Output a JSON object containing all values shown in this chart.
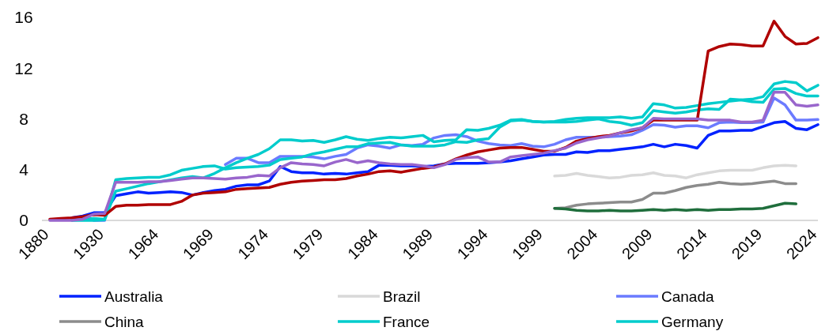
{
  "chart_data": {
    "type": "line",
    "categories": [
      "1880",
      null,
      null,
      null,
      null,
      "1930",
      null,
      null,
      null,
      null,
      "1964",
      null,
      null,
      null,
      null,
      "1969",
      null,
      null,
      null,
      null,
      "1974",
      null,
      null,
      null,
      null,
      "1979",
      null,
      null,
      null,
      null,
      "1984",
      null,
      null,
      null,
      null,
      "1989",
      null,
      null,
      null,
      null,
      "1994",
      null,
      null,
      null,
      null,
      "1999",
      null,
      null,
      null,
      null,
      "2004",
      null,
      null,
      null,
      null,
      "2009",
      null,
      null,
      null,
      null,
      "2014",
      null,
      null,
      null,
      null,
      "2019",
      null,
      null,
      null,
      null,
      "2024"
    ],
    "ylim": [
      0,
      16
    ],
    "yticks": [
      0,
      4,
      8,
      12,
      16
    ],
    "grid": false,
    "legend": "bottom",
    "line_style": "solid",
    "marker": "none",
    "series": [
      {
        "name": "Australia",
        "color": "#0022ff",
        "values": [
          null,
          null,
          0.2,
          0.35,
          0.6,
          0.6,
          1.95,
          2.1,
          2.25,
          2.15,
          2.2,
          2.25,
          2.2,
          2.0,
          2.2,
          2.35,
          2.45,
          2.7,
          2.8,
          2.8,
          3.1,
          4.25,
          3.85,
          3.75,
          3.75,
          3.65,
          3.7,
          3.65,
          3.75,
          3.85,
          4.35,
          4.35,
          4.3,
          4.3,
          4.25,
          4.3,
          4.45,
          4.5,
          4.5,
          4.5,
          4.55,
          4.6,
          4.7,
          4.85,
          5.0,
          5.15,
          5.2,
          5.2,
          5.4,
          5.35,
          5.5,
          5.5,
          5.6,
          5.7,
          5.8,
          6.0,
          5.8,
          6.0,
          5.9,
          5.7,
          6.7,
          7.05,
          7.05,
          7.1,
          7.1,
          7.4,
          7.7,
          7.8,
          7.25,
          7.15,
          7.55
        ]
      },
      {
        "name": "Brazil",
        "color": "#d9d9d9",
        "values": [
          null,
          null,
          null,
          null,
          null,
          null,
          null,
          null,
          null,
          null,
          null,
          null,
          null,
          null,
          null,
          null,
          null,
          null,
          null,
          null,
          null,
          null,
          null,
          null,
          null,
          null,
          null,
          null,
          null,
          null,
          null,
          null,
          null,
          null,
          null,
          null,
          null,
          null,
          null,
          null,
          null,
          null,
          null,
          null,
          null,
          null,
          3.5,
          3.55,
          3.7,
          3.55,
          3.45,
          3.35,
          3.4,
          3.55,
          3.6,
          3.75,
          3.55,
          3.5,
          3.35,
          3.6,
          3.75,
          3.9,
          3.95,
          3.95,
          3.95,
          4.15,
          4.3,
          4.35,
          4.3,
          null,
          null
        ]
      },
      {
        "name": "Canada",
        "color": "#6b7bff",
        "values": [
          null,
          null,
          null,
          null,
          0,
          0,
          null,
          null,
          null,
          null,
          null,
          null,
          null,
          null,
          null,
          null,
          4.4,
          4.9,
          4.9,
          4.55,
          4.55,
          5.05,
          5.05,
          5.05,
          5.0,
          4.85,
          5.05,
          5.2,
          5.7,
          5.95,
          5.85,
          5.7,
          5.95,
          5.9,
          6.0,
          6.5,
          6.7,
          6.75,
          6.6,
          6.25,
          6.05,
          5.95,
          5.9,
          6.05,
          5.85,
          5.8,
          6.0,
          6.35,
          6.55,
          6.55,
          6.55,
          6.6,
          6.65,
          6.75,
          7.1,
          7.55,
          7.5,
          7.35,
          7.45,
          7.45,
          7.3,
          7.7,
          7.75,
          7.7,
          7.7,
          7.75,
          9.65,
          9.1,
          7.9,
          7.9,
          7.95
        ]
      },
      {
        "name": "China",
        "color": "#8c8c8c",
        "values": [
          null,
          null,
          null,
          null,
          null,
          null,
          null,
          null,
          null,
          null,
          null,
          null,
          null,
          null,
          null,
          null,
          null,
          null,
          null,
          null,
          null,
          null,
          null,
          null,
          null,
          null,
          null,
          null,
          null,
          null,
          null,
          null,
          null,
          null,
          null,
          null,
          null,
          null,
          null,
          null,
          null,
          null,
          null,
          null,
          null,
          null,
          0.95,
          1.0,
          1.2,
          1.3,
          1.35,
          1.4,
          1.45,
          1.45,
          1.65,
          2.15,
          2.15,
          2.35,
          2.6,
          2.75,
          2.85,
          3.0,
          2.9,
          2.85,
          2.9,
          3.0,
          3.1,
          2.9,
          2.9,
          null,
          null
        ]
      },
      {
        "name": "France",
        "color": "#00cccc",
        "values": [
          null,
          null,
          0.1,
          0.1,
          0.15,
          0.1,
          3.2,
          3.3,
          3.35,
          3.4,
          3.4,
          3.6,
          3.95,
          4.1,
          4.25,
          4.3,
          4.05,
          4.15,
          4.2,
          4.25,
          4.35,
          4.8,
          4.9,
          5.0,
          5.25,
          5.4,
          5.6,
          5.8,
          5.8,
          6.05,
          6.1,
          6.15,
          5.95,
          5.85,
          5.85,
          5.85,
          5.95,
          6.2,
          6.15,
          6.35,
          6.45,
          7.35,
          7.85,
          7.9,
          7.8,
          7.75,
          7.8,
          7.95,
          8.05,
          8.1,
          8.1,
          8.1,
          8.15,
          8.05,
          8.15,
          9.2,
          9.1,
          8.85,
          8.9,
          9.05,
          9.2,
          9.3,
          9.4,
          9.5,
          9.55,
          9.75,
          10.75,
          10.95,
          10.85,
          10.2,
          10.65
        ]
      },
      {
        "name": "Germany",
        "color": "#00cccc",
        "values": [
          null,
          null,
          0,
          0,
          0,
          0.05,
          2.3,
          2.5,
          2.7,
          2.9,
          3.05,
          3.2,
          3.35,
          3.45,
          3.35,
          3.7,
          4.15,
          4.55,
          4.9,
          5.2,
          5.65,
          6.35,
          6.35,
          6.25,
          6.3,
          6.15,
          6.35,
          6.6,
          6.4,
          6.3,
          6.45,
          6.55,
          6.5,
          6.6,
          6.7,
          6.2,
          6.3,
          6.35,
          7.15,
          7.1,
          7.25,
          7.5,
          7.9,
          7.95,
          7.8,
          7.75,
          7.75,
          7.75,
          7.8,
          7.9,
          8.0,
          7.8,
          7.7,
          7.5,
          7.7,
          8.65,
          8.55,
          8.45,
          8.55,
          8.7,
          8.8,
          8.75,
          9.55,
          9.5,
          9.35,
          9.3,
          10.35,
          10.4,
          10.0,
          9.8,
          9.8
        ]
      },
      {
        "color": "#b00000",
        "values": [
          0.1,
          0.15,
          0.2,
          0.3,
          0.45,
          0.4,
          1.1,
          1.2,
          1.2,
          1.25,
          1.25,
          1.25,
          1.5,
          2.0,
          2.15,
          2.2,
          2.25,
          2.45,
          2.5,
          2.55,
          2.6,
          2.85,
          3.0,
          3.1,
          3.15,
          3.2,
          3.2,
          3.3,
          3.5,
          3.65,
          3.85,
          3.9,
          3.8,
          3.95,
          4.1,
          4.2,
          4.45,
          4.85,
          5.15,
          5.4,
          5.55,
          5.7,
          5.75,
          5.75,
          5.6,
          5.45,
          5.45,
          5.75,
          6.25,
          6.45,
          6.6,
          6.7,
          6.9,
          7.05,
          7.3,
          7.9,
          7.9,
          7.9,
          7.9,
          7.9,
          13.35,
          13.7,
          13.9,
          13.85,
          13.75,
          13.75,
          15.7,
          14.5,
          13.9,
          13.95,
          14.4
        ]
      },
      {
        "color": "#9966cc",
        "values": [
          0,
          0,
          0,
          0.1,
          0.5,
          0.55,
          3.0,
          3.0,
          3.0,
          3.05,
          3.05,
          3.15,
          3.25,
          3.35,
          3.35,
          3.3,
          3.25,
          3.35,
          3.4,
          3.55,
          3.5,
          4.15,
          4.55,
          4.45,
          4.4,
          4.3,
          4.6,
          4.8,
          4.55,
          4.7,
          4.55,
          4.45,
          4.4,
          4.4,
          4.3,
          4.15,
          4.4,
          4.8,
          4.95,
          5.0,
          4.6,
          4.6,
          5.0,
          5.1,
          5.2,
          5.3,
          5.5,
          5.7,
          6.1,
          6.35,
          6.5,
          6.65,
          6.9,
          7.15,
          7.3,
          8.05,
          8.0,
          8.0,
          8.0,
          8.0,
          7.9,
          7.9,
          7.9,
          7.75,
          7.75,
          7.9,
          10.1,
          10.1,
          9.1,
          9.0,
          9.1
        ]
      },
      {
        "color": "#1f6e3c",
        "values": [
          null,
          null,
          null,
          null,
          null,
          null,
          null,
          null,
          null,
          null,
          null,
          null,
          null,
          null,
          null,
          null,
          null,
          null,
          null,
          null,
          null,
          null,
          null,
          null,
          null,
          null,
          null,
          null,
          null,
          null,
          null,
          null,
          null,
          null,
          null,
          null,
          null,
          null,
          null,
          null,
          null,
          null,
          null,
          null,
          null,
          null,
          0.95,
          0.9,
          0.8,
          0.75,
          0.75,
          0.8,
          0.75,
          0.75,
          0.8,
          0.85,
          0.8,
          0.85,
          0.8,
          0.85,
          0.8,
          0.85,
          0.85,
          0.9,
          0.9,
          0.95,
          1.15,
          1.35,
          1.3,
          null,
          null
        ]
      }
    ]
  }
}
